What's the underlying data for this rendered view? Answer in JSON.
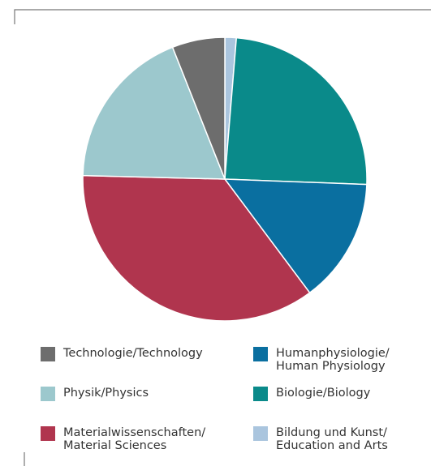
{
  "chart_data": {
    "type": "pie",
    "categories": [
      "Technologie/Technology",
      "Humanphysiologie/\nHuman Physiology",
      "Physik/Physics",
      "Biologie/Biology",
      "Materialwissenschaften/\nMaterial Sciences",
      "Bildung und Kunst/\nEducation and Arts"
    ],
    "values": [
      6.0,
      14.2,
      18.6,
      24.3,
      35.6,
      1.3
    ],
    "colors": [
      "#6d6d6d",
      "#0a6fa0",
      "#9cc8cd",
      "#0a8a8a",
      "#b0354e",
      "#aac5de"
    ]
  }
}
